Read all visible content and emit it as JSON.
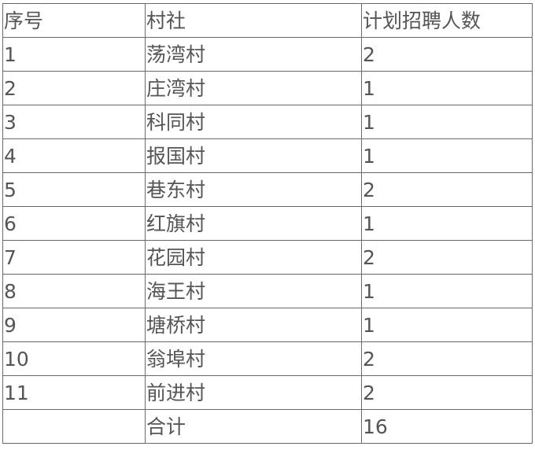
{
  "table": {
    "headers": [
      "序号",
      "村社",
      "计划招聘人数"
    ],
    "rows": [
      [
        "1",
        "荡湾村",
        "2"
      ],
      [
        "2",
        "庄湾村",
        "1"
      ],
      [
        "3",
        "科同村",
        "1"
      ],
      [
        "4",
        "报国村",
        "1"
      ],
      [
        "5",
        "巷东村",
        "2"
      ],
      [
        "6",
        "红旗村",
        "1"
      ],
      [
        "7",
        "花园村",
        "2"
      ],
      [
        "8",
        "海王村",
        "1"
      ],
      [
        "9",
        "塘桥村",
        "1"
      ],
      [
        "10",
        "翁埠村",
        "2"
      ],
      [
        "11",
        "前进村",
        "2"
      ],
      [
        "",
        "合计",
        "16"
      ]
    ]
  }
}
